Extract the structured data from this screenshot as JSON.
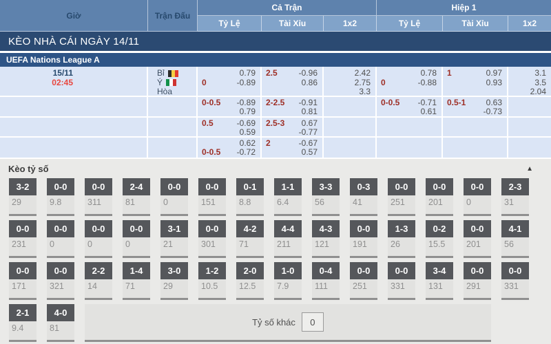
{
  "table_header": {
    "time": "Giờ",
    "match": "Trận Đấu",
    "full_match": "Cả Trận",
    "first_half": "Hiệp 1",
    "odds": "Tỷ Lệ",
    "over_under": "Tài Xỉu",
    "one_x_two": "1x2"
  },
  "banner_title": "KÈO NHÀ CÁI NGÀY 14/11",
  "league_name": "UEFA Nations League A",
  "match": {
    "date": "15/11",
    "time": "02:45",
    "teams": [
      {
        "name": "Bỉ",
        "flag": "be"
      },
      {
        "name": "Ý",
        "flag": "it"
      },
      {
        "name": "Hòa",
        "flag": ""
      }
    ]
  },
  "odds_rows": [
    {
      "ft_handicap": [
        [
          "",
          "0.79"
        ],
        [
          "0",
          "-0.89"
        ]
      ],
      "ft_ou": [
        [
          "2.5",
          "-0.96"
        ],
        [
          "",
          "0.86"
        ]
      ],
      "ft_1x2": [
        "2.42",
        "2.75",
        "3.3"
      ],
      "h1_handicap": [
        [
          "",
          "0.78"
        ],
        [
          "0",
          "-0.88"
        ]
      ],
      "h1_ou": [
        [
          "1",
          "0.97"
        ],
        [
          "",
          "0.93"
        ]
      ],
      "h1_1x2": [
        "3.1",
        "3.5",
        "2.04"
      ]
    },
    {
      "ft_handicap": [
        [
          "0-0.5",
          "-0.89"
        ],
        [
          "",
          "0.79"
        ]
      ],
      "ft_ou": [
        [
          "2-2.5",
          "-0.91"
        ],
        [
          "",
          "0.81"
        ]
      ],
      "ft_1x2": [],
      "h1_handicap": [
        [
          "0-0.5",
          "-0.71"
        ],
        [
          "",
          "0.61"
        ]
      ],
      "h1_ou": [
        [
          "0.5-1",
          "0.63"
        ],
        [
          "",
          "-0.73"
        ]
      ],
      "h1_1x2": []
    },
    {
      "ft_handicap": [
        [
          "0.5",
          "-0.69"
        ],
        [
          "",
          "0.59"
        ]
      ],
      "ft_ou": [
        [
          "2.5-3",
          "0.67"
        ],
        [
          "",
          "-0.77"
        ]
      ],
      "ft_1x2": [],
      "h1_handicap": [],
      "h1_ou": [],
      "h1_1x2": []
    },
    {
      "ft_handicap": [
        [
          "",
          "0.62"
        ],
        [
          "0-0.5",
          "-0.72"
        ]
      ],
      "ft_ou": [
        [
          "2",
          "-0.67"
        ],
        [
          "",
          "0.57"
        ]
      ],
      "ft_1x2": [],
      "h1_handicap": [],
      "h1_ou": [],
      "h1_1x2": []
    }
  ],
  "score_section": {
    "title": "Kèo tỷ số",
    "collapse_icon": "▲",
    "rows": [
      [
        {
          "score": "3-2",
          "value": "29"
        },
        {
          "score": "0-0",
          "value": "9.8"
        },
        {
          "score": "0-0",
          "value": "311"
        },
        {
          "score": "2-4",
          "value": "81"
        },
        {
          "score": "0-0",
          "value": "0"
        },
        {
          "score": "0-0",
          "value": "151"
        },
        {
          "score": "0-1",
          "value": "8.8"
        },
        {
          "score": "1-1",
          "value": "6.4"
        },
        {
          "score": "3-3",
          "value": "56"
        },
        {
          "score": "0-3",
          "value": "41"
        },
        {
          "score": "0-0",
          "value": "251"
        },
        {
          "score": "0-0",
          "value": "201"
        },
        {
          "score": "0-0",
          "value": "0"
        },
        {
          "score": "2-3",
          "value": "31"
        }
      ],
      [
        {
          "score": "0-0",
          "value": "231"
        },
        {
          "score": "0-0",
          "value": "0"
        },
        {
          "score": "0-0",
          "value": "0"
        },
        {
          "score": "0-0",
          "value": "0"
        },
        {
          "score": "3-1",
          "value": "21"
        },
        {
          "score": "0-0",
          "value": "301"
        },
        {
          "score": "4-2",
          "value": "71"
        },
        {
          "score": "4-4",
          "value": "211"
        },
        {
          "score": "4-3",
          "value": "121"
        },
        {
          "score": "0-0",
          "value": "191"
        },
        {
          "score": "1-3",
          "value": "26"
        },
        {
          "score": "0-2",
          "value": "15.5"
        },
        {
          "score": "0-0",
          "value": "201"
        },
        {
          "score": "4-1",
          "value": "56"
        }
      ],
      [
        {
          "score": "0-0",
          "value": "171"
        },
        {
          "score": "0-0",
          "value": "321"
        },
        {
          "score": "2-2",
          "value": "14"
        },
        {
          "score": "1-4",
          "value": "71"
        },
        {
          "score": "3-0",
          "value": "29"
        },
        {
          "score": "1-2",
          "value": "10.5"
        },
        {
          "score": "2-0",
          "value": "12.5"
        },
        {
          "score": "1-0",
          "value": "7.9"
        },
        {
          "score": "0-4",
          "value": "111"
        },
        {
          "score": "0-0",
          "value": "251"
        },
        {
          "score": "0-0",
          "value": "331"
        },
        {
          "score": "3-4",
          "value": "131"
        },
        {
          "score": "0-0",
          "value": "291"
        },
        {
          "score": "0-0",
          "value": "331"
        }
      ],
      [
        {
          "score": "2-1",
          "value": "9.4"
        },
        {
          "score": "4-0",
          "value": "81"
        }
      ]
    ],
    "other_label": "Tỷ số khác",
    "other_value": "0"
  },
  "colors": {
    "header_blue": "#5e82ad",
    "subheader_blue": "#81a3c9",
    "header_dark_text": "#27496d",
    "banner_navy": "#2b4a72",
    "league_navy": "#2e5486",
    "row_bg": "#dbe5f6",
    "odds_label_red": "#9e2f26",
    "time_red": "#e8473f",
    "score_header_bg": "#55575b",
    "score_section_bg": "#eaeae8",
    "score_value_text": "#8f8f8f"
  }
}
